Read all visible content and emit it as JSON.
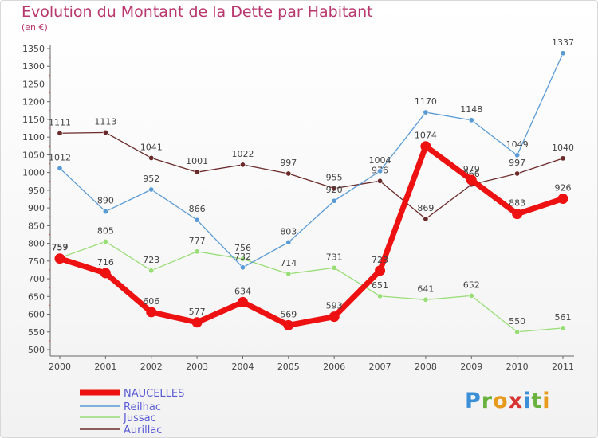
{
  "title": "Evolution du Montant de la Dette par Habitant",
  "unit": "(en €)",
  "logo": {
    "text": "Proxiti",
    "letters": [
      {
        "ch": "P",
        "color": "#3a8fd6"
      },
      {
        "ch": "r",
        "color": "#6ab23e"
      },
      {
        "ch": "o",
        "color": "#e79a1c"
      },
      {
        "ch": "x",
        "color": "#d93232"
      },
      {
        "ch": "i",
        "color": "#3a8fd6"
      },
      {
        "ch": "t",
        "color": "#6ab23e"
      },
      {
        "ch": "i",
        "color": "#e79a1c"
      }
    ]
  },
  "chart_data": {
    "type": "line",
    "title": "Evolution du Montant de la Dette par Habitant",
    "ylabel": "(en €)",
    "xlabel": "",
    "ylim": [
      500,
      1350
    ],
    "yticks": [
      500,
      550,
      600,
      650,
      700,
      750,
      800,
      850,
      900,
      950,
      1000,
      1050,
      1100,
      1150,
      1200,
      1250,
      1300,
      1350
    ],
    "categories": [
      "2000",
      "2001",
      "2002",
      "2003",
      "2004",
      "2005",
      "2006",
      "2007",
      "2008",
      "2009",
      "2010",
      "2011"
    ],
    "grid": false,
    "legend": "bottom-left",
    "series": [
      {
        "name": "Aurillac",
        "color": "#6b2a2a",
        "values": [
          1111,
          1113,
          1041,
          1001,
          1022,
          997,
          955,
          976,
          869,
          966,
          997,
          1040
        ]
      },
      {
        "name": "Jussac",
        "color": "#99dd77",
        "values": [
          759,
          805,
          723,
          777,
          756,
          714,
          731,
          651,
          641,
          652,
          550,
          561
        ]
      },
      {
        "name": "Reilhac",
        "color": "#5b9bd5",
        "values": [
          1012,
          890,
          952,
          866,
          732,
          803,
          920,
          1004,
          1170,
          1148,
          1049,
          1337
        ]
      },
      {
        "name": "NAUCELLES",
        "color": "#ee1111",
        "values": [
          757,
          716,
          606,
          577,
          634,
          569,
          593,
          723,
          1074,
          979,
          883,
          926
        ]
      }
    ],
    "legend_order": [
      "NAUCELLES",
      "Reilhac",
      "Jussac",
      "Aurillac"
    ]
  }
}
